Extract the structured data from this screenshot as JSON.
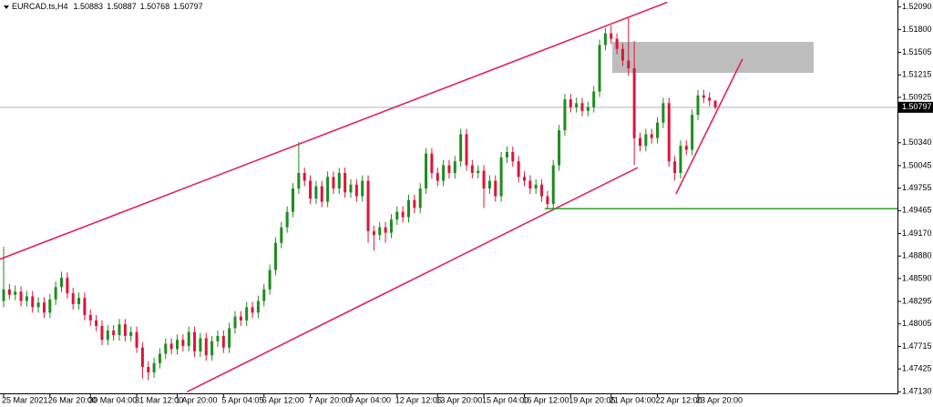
{
  "chart_data": {
    "type": "candlestick",
    "symbol": "EURCAD.ts,H4",
    "categories": [
      "25 Mar 2021",
      null,
      null,
      null,
      null,
      null,
      null,
      null,
      "26 Mar 20:00",
      null,
      null,
      null,
      null,
      null,
      null,
      "30 Mar 04:00",
      null,
      null,
      null,
      null,
      null,
      null,
      null,
      "31 Mar 12:00",
      null,
      null,
      null,
      null,
      null,
      null,
      "1 Apr 20:00",
      null,
      null,
      null,
      null,
      null,
      null,
      null,
      "5 Apr 04:05",
      null,
      null,
      null,
      null,
      null,
      null,
      "6 Apr 12:00",
      null,
      null,
      null,
      null,
      null,
      null,
      null,
      "7 Apr 20:00",
      null,
      null,
      null,
      null,
      null,
      null,
      "9 Apr 04:00",
      null,
      null,
      null,
      null,
      null,
      null,
      null,
      "12 Apr 12:05",
      null,
      null,
      null,
      null,
      null,
      null,
      "13 Apr 20:00",
      null,
      null,
      null,
      null,
      null,
      null,
      null,
      "15 Apr 04:00",
      null,
      null,
      null,
      null,
      null,
      null,
      "16 Apr 12:00",
      null,
      null,
      null,
      null,
      null,
      null,
      null,
      "19 Apr 20:05",
      null,
      null,
      null,
      null,
      null,
      null,
      "21 Apr 04:00",
      null,
      null,
      null,
      null,
      null,
      null,
      null,
      "22 Apr 12:00",
      null,
      null,
      null,
      null,
      null,
      null,
      "23 Apr 20:00",
      null,
      null,
      null
    ],
    "candles": [
      [
        1.483,
        1.49,
        1.4822,
        1.4845
      ],
      [
        1.4845,
        1.4852,
        1.4832,
        1.4838
      ],
      [
        1.4838,
        1.485,
        1.4831,
        1.4842
      ],
      [
        1.4842,
        1.4849,
        1.4823,
        1.483
      ],
      [
        1.483,
        1.4843,
        1.4823,
        1.4836
      ],
      [
        1.4836,
        1.4843,
        1.4815,
        1.4822
      ],
      [
        1.4822,
        1.4835,
        1.4815,
        1.4828
      ],
      [
        1.4828,
        1.4835,
        1.4808,
        1.4815
      ],
      [
        1.4815,
        1.4839,
        1.4808,
        1.4832
      ],
      [
        1.4832,
        1.4855,
        1.4825,
        1.4848
      ],
      [
        1.4848,
        1.4868,
        1.4841,
        1.486
      ],
      [
        1.486,
        1.4867,
        1.4833,
        1.484
      ],
      [
        1.484,
        1.4847,
        1.4819,
        1.4826
      ],
      [
        1.4826,
        1.4841,
        1.4819,
        1.4834
      ],
      [
        1.4834,
        1.4841,
        1.4805,
        1.4812
      ],
      [
        1.4812,
        1.4819,
        1.4798,
        1.4805
      ],
      [
        1.4805,
        1.4812,
        1.4791,
        1.4798
      ],
      [
        1.4798,
        1.4805,
        1.4773,
        1.478
      ],
      [
        1.478,
        1.4799,
        1.4773,
        1.4792
      ],
      [
        1.4792,
        1.4799,
        1.4779,
        1.4786
      ],
      [
        1.4786,
        1.4807,
        1.4779,
        1.48
      ],
      [
        1.48,
        1.4807,
        1.4778,
        1.4785
      ],
      [
        1.4785,
        1.4797,
        1.4778,
        1.479
      ],
      [
        1.479,
        1.4797,
        1.4763,
        1.477
      ],
      [
        1.477,
        1.4777,
        1.473,
        1.4745
      ],
      [
        1.4745,
        1.4752,
        1.4728,
        1.4738
      ],
      [
        1.4738,
        1.4757,
        1.4731,
        1.475
      ],
      [
        1.475,
        1.4769,
        1.4743,
        1.4762
      ],
      [
        1.4762,
        1.4782,
        1.4755,
        1.4775
      ],
      [
        1.4775,
        1.4782,
        1.4761,
        1.4768
      ],
      [
        1.4768,
        1.4787,
        1.4761,
        1.478
      ],
      [
        1.478,
        1.4787,
        1.4765,
        1.4772
      ],
      [
        1.4772,
        1.4797,
        1.4765,
        1.479
      ],
      [
        1.479,
        1.4797,
        1.4758,
        1.4765
      ],
      [
        1.4765,
        1.4789,
        1.4758,
        1.4782
      ],
      [
        1.4782,
        1.4789,
        1.4753,
        1.476
      ],
      [
        1.476,
        1.4785,
        1.4753,
        1.4778
      ],
      [
        1.4778,
        1.4792,
        1.4771,
        1.4785
      ],
      [
        1.4785,
        1.4792,
        1.4763,
        1.477
      ],
      [
        1.477,
        1.4802,
        1.4763,
        1.4795
      ],
      [
        1.4795,
        1.4817,
        1.4788,
        1.481
      ],
      [
        1.481,
        1.4817,
        1.4798,
        1.4805
      ],
      [
        1.4805,
        1.4829,
        1.4798,
        1.4822
      ],
      [
        1.4822,
        1.4829,
        1.4808,
        1.4815
      ],
      [
        1.4815,
        1.4837,
        1.4808,
        1.483
      ],
      [
        1.483,
        1.4852,
        1.4823,
        1.4845
      ],
      [
        1.4845,
        1.4877,
        1.4838,
        1.487
      ],
      [
        1.487,
        1.4912,
        1.4863,
        1.4905
      ],
      [
        1.4905,
        1.4932,
        1.4898,
        1.4925
      ],
      [
        1.4925,
        1.4952,
        1.4918,
        1.4945
      ],
      [
        1.4945,
        1.4982,
        1.4938,
        1.4975
      ],
      [
        1.4975,
        1.5035,
        1.4968,
        1.4995
      ],
      [
        1.4995,
        1.5002,
        1.4978,
        1.4985
      ],
      [
        1.4985,
        1.4992,
        1.4955,
        1.4962
      ],
      [
        1.4962,
        1.4985,
        1.4955,
        1.4978
      ],
      [
        1.4978,
        1.4985,
        1.4951,
        1.4958
      ],
      [
        1.4958,
        1.4997,
        1.4951,
        1.499
      ],
      [
        1.499,
        1.4997,
        1.4968,
        1.4975
      ],
      [
        1.4975,
        1.5002,
        1.4968,
        1.4995
      ],
      [
        1.4995,
        1.5002,
        1.4963,
        1.497
      ],
      [
        1.497,
        1.4987,
        1.4963,
        1.498
      ],
      [
        1.498,
        1.4987,
        1.4958,
        1.4965
      ],
      [
        1.4965,
        1.4992,
        1.4958,
        1.4985
      ],
      [
        1.4985,
        1.4992,
        1.4905,
        1.492
      ],
      [
        1.492,
        1.4927,
        1.4895,
        1.4915
      ],
      [
        1.4915,
        1.4932,
        1.4908,
        1.4925
      ],
      [
        1.4925,
        1.4932,
        1.4905,
        1.4918
      ],
      [
        1.4918,
        1.4942,
        1.4911,
        1.4935
      ],
      [
        1.4935,
        1.4952,
        1.4928,
        1.4945
      ],
      [
        1.4945,
        1.4952,
        1.4931,
        1.4938
      ],
      [
        1.4938,
        1.4967,
        1.4931,
        1.496
      ],
      [
        1.496,
        1.4967,
        1.4943,
        1.495
      ],
      [
        1.495,
        1.4982,
        1.4943,
        1.4975
      ],
      [
        1.4975,
        1.5027,
        1.4968,
        1.502
      ],
      [
        1.502,
        1.5027,
        1.4988,
        1.4995
      ],
      [
        1.4995,
        1.5002,
        1.4978,
        1.4985
      ],
      [
        1.4985,
        1.5012,
        1.4978,
        1.5005
      ],
      [
        1.5005,
        1.5012,
        1.4988,
        1.4995
      ],
      [
        1.4995,
        1.5017,
        1.4988,
        1.501
      ],
      [
        1.501,
        1.5052,
        1.5003,
        1.5045
      ],
      [
        1.5045,
        1.5052,
        1.4998,
        1.5005
      ],
      [
        1.5005,
        1.5012,
        1.4988,
        1.4995
      ],
      [
        1.4995,
        1.5005,
        1.4988,
        1.4998
      ],
      [
        1.4998,
        1.5005,
        1.495,
        1.4975
      ],
      [
        1.4975,
        1.4992,
        1.4968,
        1.4985
      ],
      [
        1.4985,
        1.4992,
        1.4958,
        1.4965
      ],
      [
        1.4965,
        1.5022,
        1.4958,
        1.5015
      ],
      [
        1.5015,
        1.5029,
        1.5008,
        1.5022
      ],
      [
        1.5022,
        1.5029,
        1.5003,
        1.501
      ],
      [
        1.501,
        1.5017,
        1.4983,
        1.499
      ],
      [
        1.499,
        1.4997,
        1.4978,
        1.4985
      ],
      [
        1.4985,
        1.4992,
        1.4968,
        1.4975
      ],
      [
        1.4975,
        1.4987,
        1.4968,
        1.498
      ],
      [
        1.498,
        1.4987,
        1.4958,
        1.4965
      ],
      [
        1.4965,
        1.4972,
        1.4948,
        1.4955
      ],
      [
        1.4955,
        1.5012,
        1.4948,
        1.5005
      ],
      [
        1.5005,
        1.5057,
        1.4998,
        1.505
      ],
      [
        1.505,
        1.5097,
        1.5043,
        1.509
      ],
      [
        1.509,
        1.5097,
        1.5073,
        1.508
      ],
      [
        1.508,
        1.5092,
        1.5073,
        1.5085
      ],
      [
        1.5085,
        1.5092,
        1.5068,
        1.5075
      ],
      [
        1.5075,
        1.5087,
        1.5068,
        1.508
      ],
      [
        1.508,
        1.5107,
        1.5073,
        1.51
      ],
      [
        1.51,
        1.5167,
        1.5093,
        1.516
      ],
      [
        1.516,
        1.5182,
        1.5153,
        1.5175
      ],
      [
        1.5175,
        1.5185,
        1.5161,
        1.5168
      ],
      [
        1.5168,
        1.5175,
        1.5148,
        1.5155
      ],
      [
        1.5155,
        1.5162,
        1.5133,
        1.514
      ],
      [
        1.514,
        1.5195,
        1.512,
        1.513
      ],
      [
        1.513,
        1.5165,
        1.5005,
        1.504
      ],
      [
        1.504,
        1.5047,
        1.5023,
        1.503
      ],
      [
        1.503,
        1.5052,
        1.5023,
        1.5045
      ],
      [
        1.5045,
        1.5052,
        1.5033,
        1.504
      ],
      [
        1.504,
        1.5067,
        1.5033,
        1.506
      ],
      [
        1.506,
        1.5092,
        1.5053,
        1.5085
      ],
      [
        1.5085,
        1.5092,
        1.5003,
        1.501
      ],
      [
        1.501,
        1.5017,
        1.4985,
        1.4995
      ],
      [
        1.4995,
        1.5037,
        1.4988,
        1.503
      ],
      [
        1.503,
        1.5037,
        1.5018,
        1.5025
      ],
      [
        1.5025,
        1.5077,
        1.5018,
        1.507
      ],
      [
        1.507,
        1.5102,
        1.5063,
        1.5095
      ],
      [
        1.5095,
        1.5102,
        1.5085,
        1.5092
      ],
      [
        1.5092,
        1.5099,
        1.5081,
        1.50883
      ],
      [
        1.50883,
        1.50887,
        1.50768,
        1.50797
      ]
    ],
    "colors": {
      "up": "#1e8c1e",
      "down": "#dc143c",
      "bid_line": "#b4b4b4"
    },
    "ylim": [
      1.4711,
      1.5218
    ],
    "yticks": [
      {
        "value": 1.5209,
        "label": "1.52090"
      },
      {
        "value": 1.518,
        "label": "1.51800"
      },
      1.51505,
      1.51215,
      1.50925,
      {
        "value": 1.5034,
        "label": "1.50340"
      },
      1.50045,
      1.49755,
      1.49465,
      {
        "value": 1.4917,
        "label": "1.49170"
      },
      {
        "value": 1.4888,
        "label": "1.48880"
      },
      {
        "value": 1.4859,
        "label": "1.48590"
      },
      1.48295,
      1.48005,
      1.47715,
      1.47425,
      {
        "value": 1.4713,
        "label": "1.47130"
      }
    ],
    "objects": [
      {
        "kind": "rectangle",
        "x": [
          105.2,
          140
        ],
        "y": [
          1.5164,
          1.5124
        ],
        "color": "#bdbdbd"
      },
      {
        "kind": "trendline",
        "x": [
          -0.6,
          114.7
        ],
        "y": [
          1.4884,
          1.5215
        ],
        "color": "#e0245a"
      },
      {
        "kind": "trendline",
        "x": [
          31.7,
          109.6
        ],
        "y": [
          1.4713,
          1.5002
        ],
        "color": "#e0245a"
      },
      {
        "kind": "trendline",
        "x": [
          116.2,
          127.7
        ],
        "y": [
          1.4968,
          1.5142
        ],
        "color": "#e0245a"
      },
      {
        "kind": "hline",
        "x": [
          93.5
        ],
        "y": [
          1.4949
        ],
        "color": "#1a9a1a"
      }
    ]
  }
}
